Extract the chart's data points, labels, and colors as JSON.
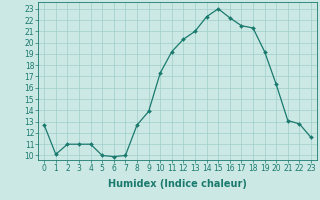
{
  "x": [
    0,
    1,
    2,
    3,
    4,
    5,
    6,
    7,
    8,
    9,
    10,
    11,
    12,
    13,
    14,
    15,
    16,
    17,
    18,
    19,
    20,
    21,
    22,
    23
  ],
  "y": [
    12.7,
    10.1,
    11.0,
    11.0,
    11.0,
    10.0,
    9.9,
    10.0,
    12.7,
    13.9,
    17.3,
    19.2,
    20.3,
    21.0,
    22.3,
    23.0,
    22.2,
    21.5,
    21.3,
    19.2,
    16.3,
    13.1,
    12.8,
    11.6
  ],
  "line_color": "#1a7a6e",
  "marker": "D",
  "marker_size": 2.0,
  "bg_color": "#cce8e4",
  "grid_color": "#9fcfca",
  "xlabel": "Humidex (Indice chaleur)",
  "ylabel_ticks": [
    10,
    11,
    12,
    13,
    14,
    15,
    16,
    17,
    18,
    19,
    20,
    21,
    22,
    23
  ],
  "xlim": [
    -0.5,
    23.5
  ],
  "ylim": [
    9.6,
    23.6
  ],
  "tick_fontsize": 5.5,
  "label_fontsize": 7.0,
  "linewidth": 0.9
}
